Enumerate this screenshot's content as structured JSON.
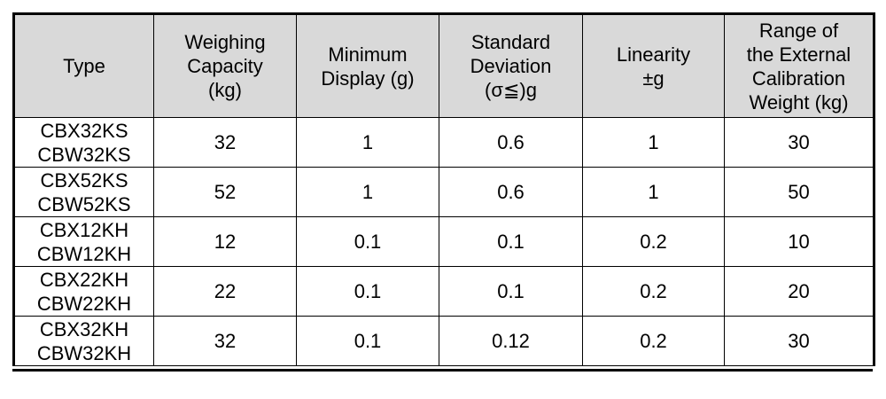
{
  "table": {
    "columns": [
      {
        "lines": [
          "Type"
        ]
      },
      {
        "lines": [
          "Weighing",
          "Capacity",
          "(kg)"
        ]
      },
      {
        "lines": [
          "Minimum",
          "Display (g)"
        ]
      },
      {
        "lines": [
          "Standard",
          "Deviation",
          "(σ≦)g"
        ]
      },
      {
        "lines": [
          "Linearity",
          "±g"
        ]
      },
      {
        "lines": [
          "Range of",
          "the External",
          "Calibration",
          "Weight (kg)"
        ]
      }
    ],
    "rows": [
      {
        "type": [
          "CBX32KS",
          "CBW32KS"
        ],
        "capacity": "32",
        "min_display": "1",
        "std_dev": "0.6",
        "linearity": "1",
        "calibration": "30"
      },
      {
        "type": [
          "CBX52KS",
          "CBW52KS"
        ],
        "capacity": "52",
        "min_display": "1",
        "std_dev": "0.6",
        "linearity": "1",
        "calibration": "50"
      },
      {
        "type": [
          "CBX12KH",
          "CBW12KH"
        ],
        "capacity": "12",
        "min_display": "0.1",
        "std_dev": "0.1",
        "linearity": "0.2",
        "calibration": "10"
      },
      {
        "type": [
          "CBX22KH",
          "CBW22KH"
        ],
        "capacity": "22",
        "min_display": "0.1",
        "std_dev": "0.1",
        "linearity": "0.2",
        "calibration": "20"
      },
      {
        "type": [
          "CBX32KH",
          "CBW32KH"
        ],
        "capacity": "32",
        "min_display": "0.1",
        "std_dev": "0.12",
        "linearity": "0.2",
        "calibration": "30"
      }
    ]
  },
  "colors": {
    "header_background": "#d9d9d9",
    "border": "#000000"
  }
}
